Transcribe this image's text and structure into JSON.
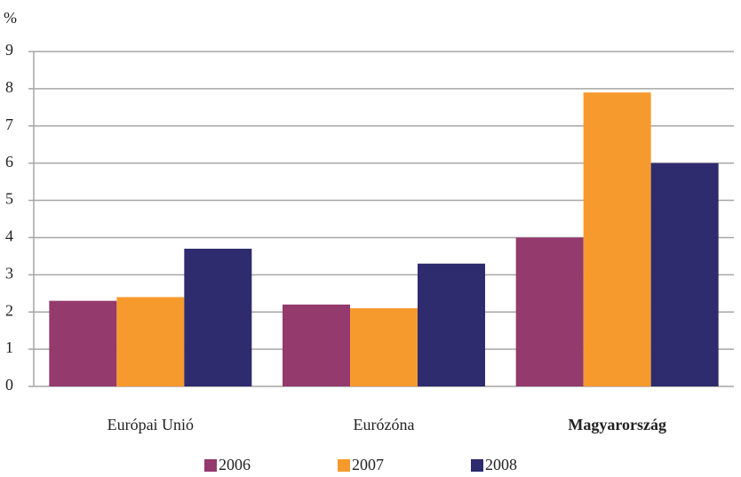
{
  "chart_data": {
    "type": "bar",
    "y_label": "%",
    "categories": [
      "Európai Unió",
      "Eurózóna",
      "Magyarország"
    ],
    "series": [
      {
        "name": "2006",
        "color": "#943a6c",
        "values": [
          2.3,
          2.2,
          4.0
        ]
      },
      {
        "name": "2007",
        "color": "#f79a2e",
        "values": [
          2.4,
          2.1,
          7.9
        ]
      },
      {
        "name": "2008",
        "color": "#2e2b6e",
        "values": [
          3.7,
          3.3,
          6.0
        ]
      }
    ],
    "ylim": [
      0,
      9
    ],
    "yticks": [
      0,
      1,
      2,
      3,
      4,
      5,
      6,
      7,
      8,
      9
    ],
    "grid": true,
    "legend": "bottom"
  }
}
